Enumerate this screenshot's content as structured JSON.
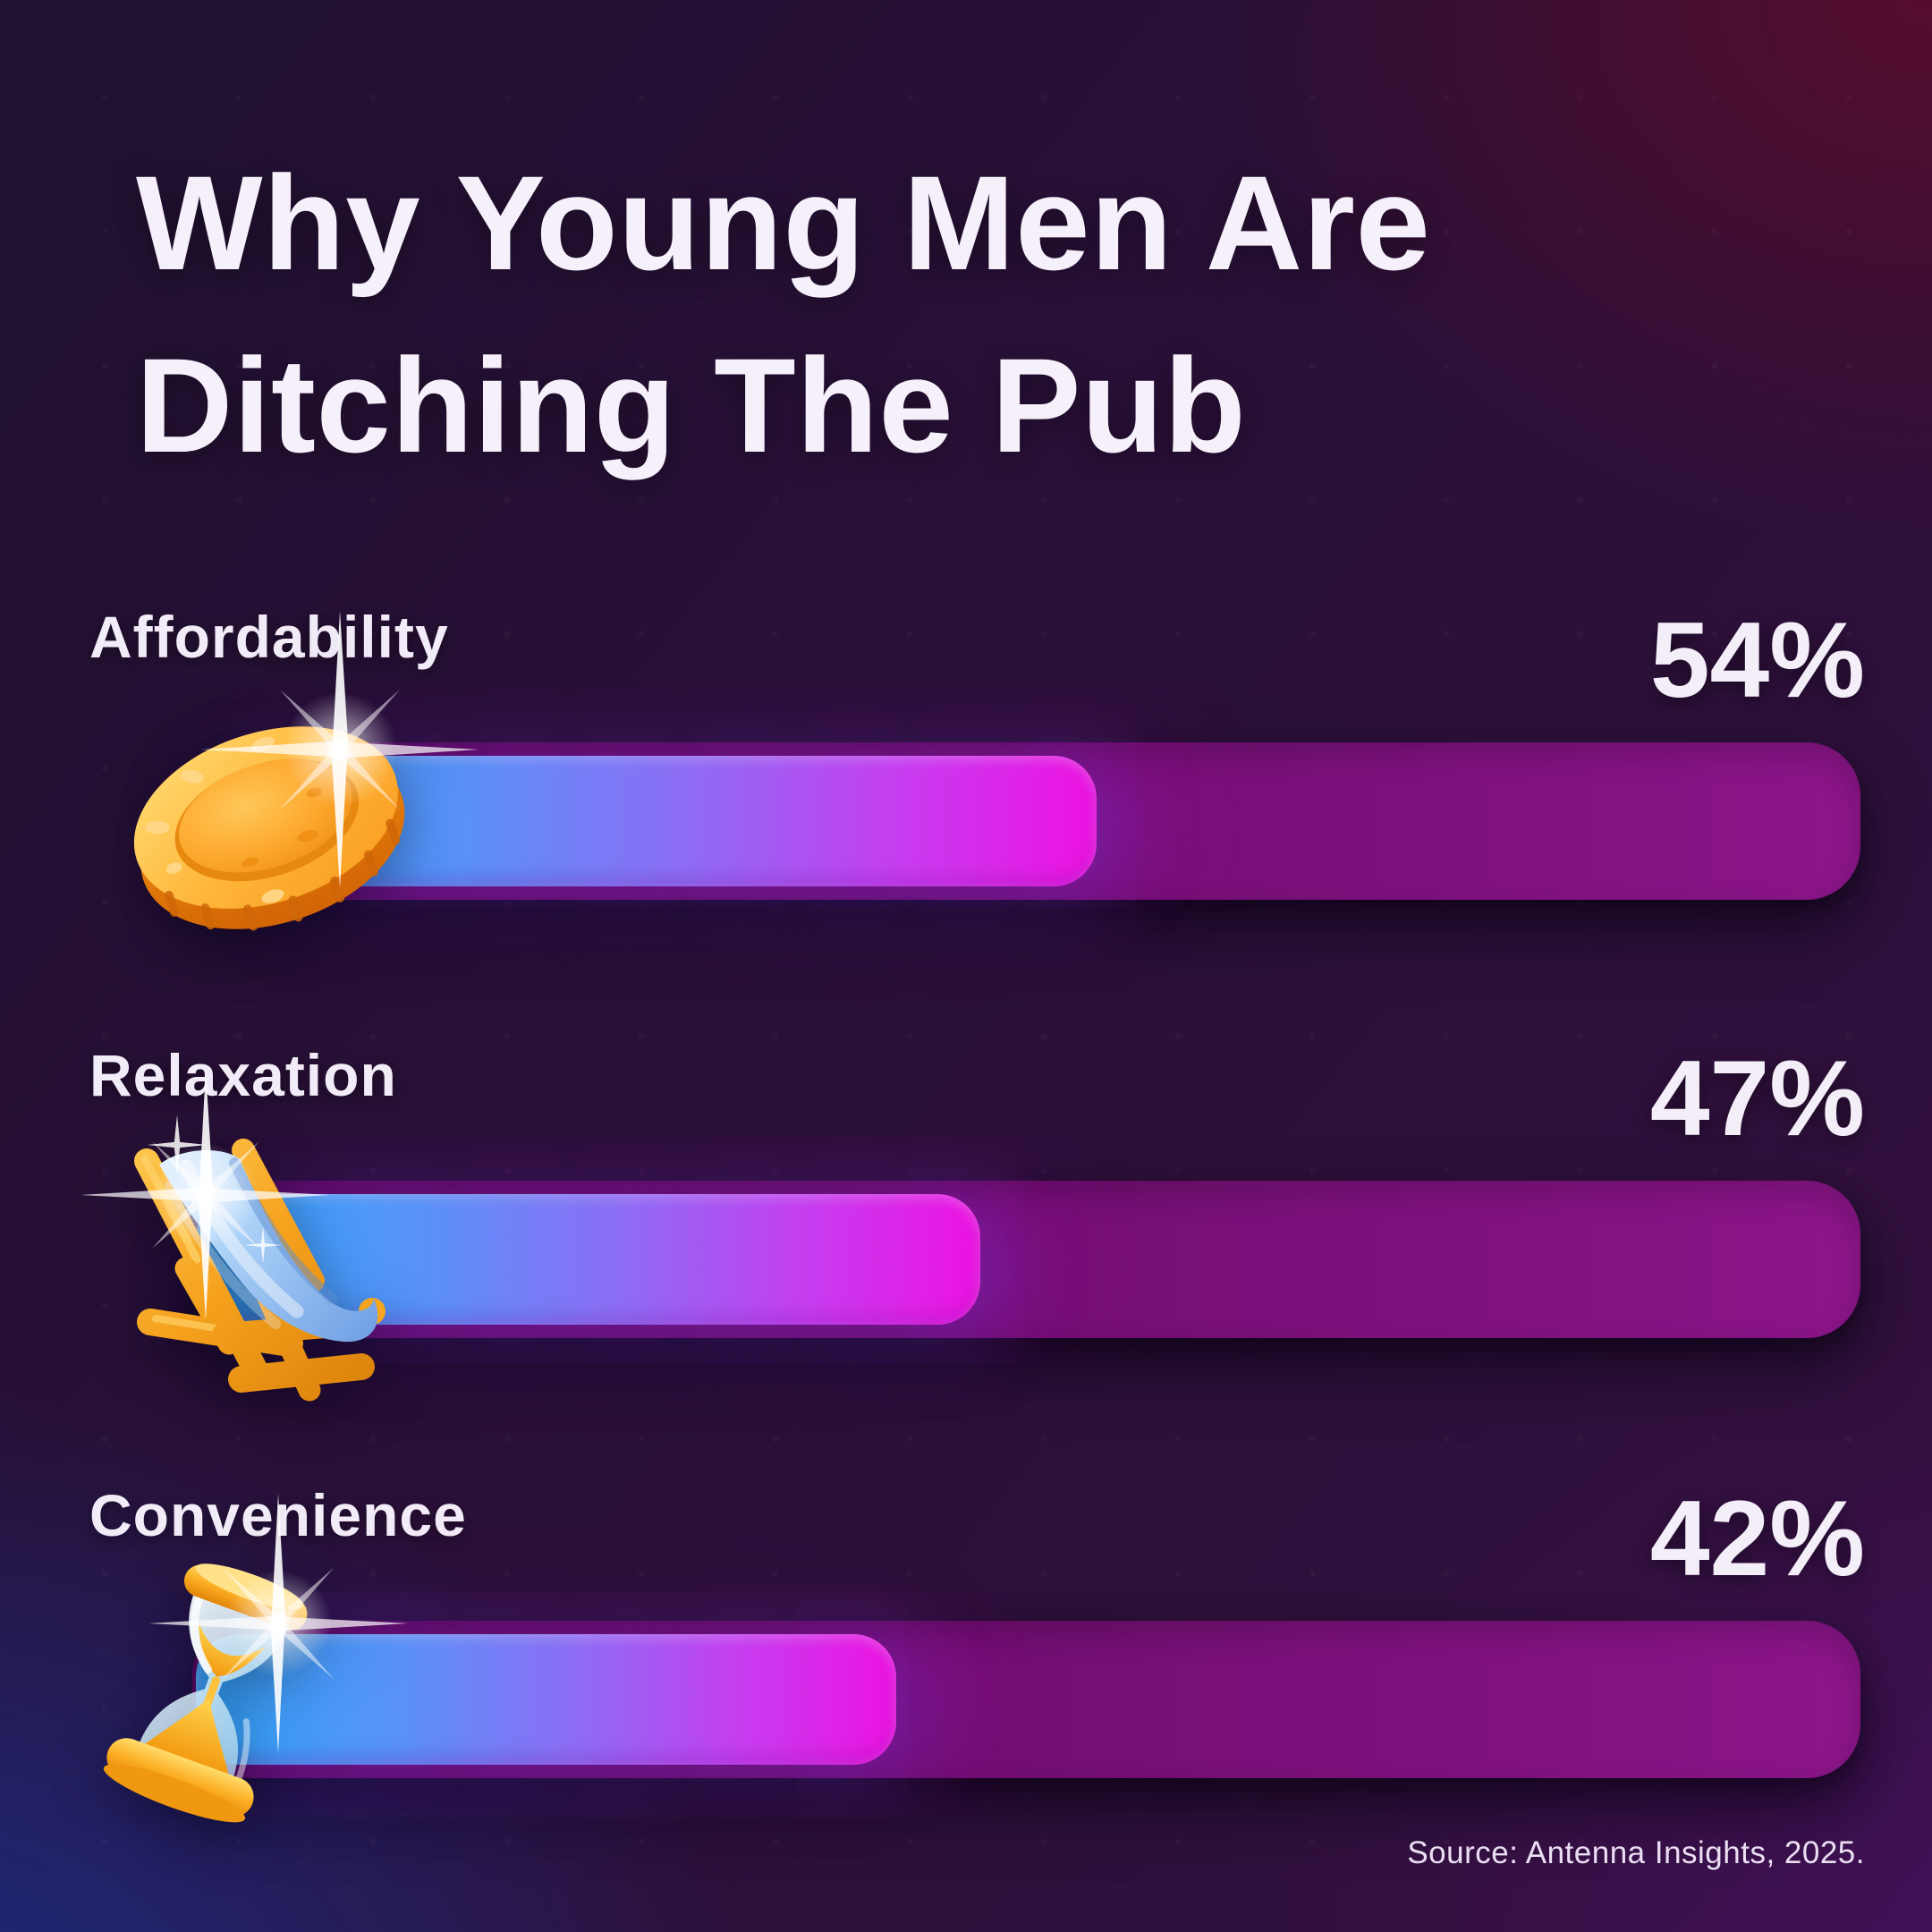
{
  "title": {
    "line1": "Why Young Men Are",
    "line2": "Ditching The Pub"
  },
  "source": "Source: Antenna Insights, 2025.",
  "colors": {
    "background_top_left": "#211231",
    "background_top_right": "#330d22",
    "background_bottom_left": "#1b2a78",
    "background_bottom_right": "#3a1150",
    "track_purple": "#6e0d72",
    "fill_blue": "#2fa7fb",
    "fill_violet": "#8f6cf4",
    "fill_magenta": "#ee12e2",
    "text_white": "#f4eef8",
    "gold": "#f5a11d"
  },
  "chart_data": {
    "type": "bar",
    "orientation": "horizontal",
    "title": "Why Young Men Are Ditching The Pub",
    "unit": "%",
    "xlim": [
      0,
      100
    ],
    "grid": false,
    "legend_position": "none",
    "categories": [
      "Affordability",
      "Relaxation",
      "Convenience"
    ],
    "values": [
      54,
      47,
      42
    ],
    "source": "Source: Antenna Insights, 2025.",
    "bars": [
      {
        "label": "Affordability",
        "value": 54,
        "display": "54%",
        "icon": "gold-coin"
      },
      {
        "label": "Relaxation",
        "value": 47,
        "display": "47%",
        "icon": "deck-chair"
      },
      {
        "label": "Convenience",
        "value": 42,
        "display": "42%",
        "icon": "hourglass"
      }
    ]
  }
}
